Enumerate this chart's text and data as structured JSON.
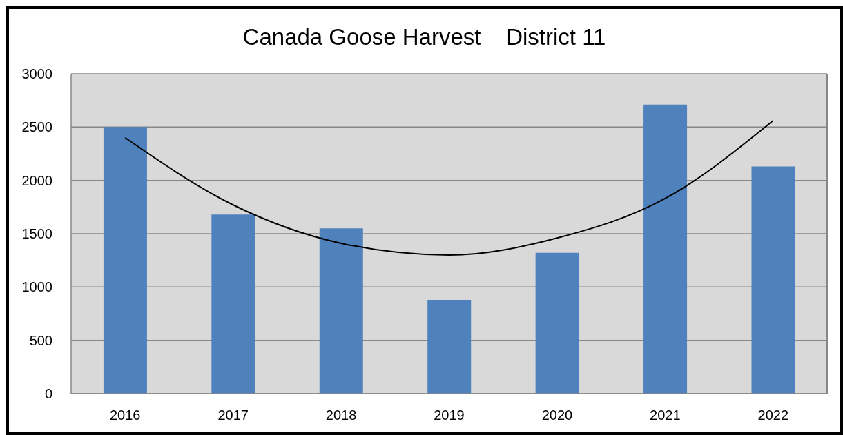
{
  "chart_data": {
    "type": "bar",
    "title": "Canada Goose Harvest    District 11",
    "categories": [
      "2016",
      "2017",
      "2018",
      "2019",
      "2020",
      "2021",
      "2022"
    ],
    "series": [
      {
        "color": "#4f81bd",
        "values": [
          2500,
          1680,
          1550,
          880,
          1320,
          2710,
          2130
        ]
      },
      {
        "type": "line",
        "color": "#000000",
        "values": [
          2400,
          1770,
          1410,
          1300,
          1460,
          1830,
          2560
        ]
      }
    ],
    "ylim": [
      0,
      3000
    ],
    "yticks": [
      0,
      500,
      1000,
      1500,
      2000,
      2500,
      3000
    ],
    "grid": "y"
  }
}
